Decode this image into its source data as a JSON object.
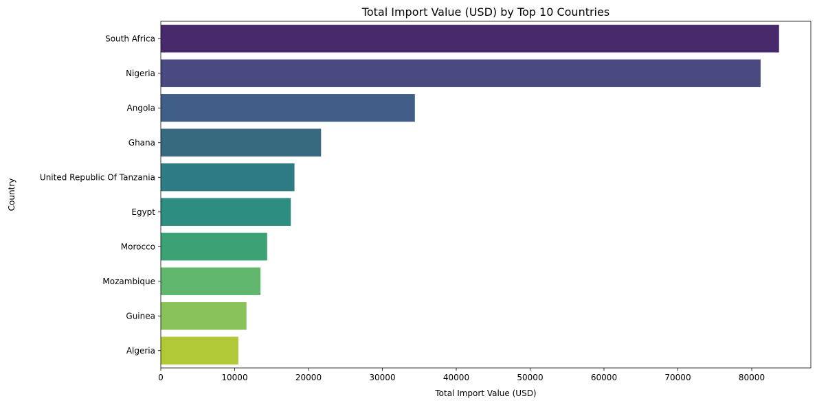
{
  "chart_data": {
    "type": "bar",
    "orientation": "horizontal",
    "title": "Total Import Value (USD) by Top 10 Countries",
    "xlabel": "Total Import Value (USD)",
    "ylabel": "Country",
    "categories": [
      "South Africa",
      "Nigeria",
      "Angola",
      "Ghana",
      "United Republic Of Tanzania",
      "Egypt",
      "Morocco",
      "Mozambique",
      "Guinea",
      "Algeria"
    ],
    "values": [
      83700,
      81200,
      34400,
      21700,
      18100,
      17600,
      14400,
      13500,
      11600,
      10500
    ],
    "colors": [
      "#482a6a",
      "#4a4980",
      "#405e88",
      "#37697f",
      "#2f7b83",
      "#2c8d80",
      "#3ca276",
      "#62b76e",
      "#8ac25a",
      "#b2c937"
    ],
    "xlim": [
      0,
      88000
    ],
    "xticks": [
      0,
      10000,
      20000,
      30000,
      40000,
      50000,
      60000,
      70000,
      80000
    ],
    "grid": false,
    "legend": "none"
  }
}
